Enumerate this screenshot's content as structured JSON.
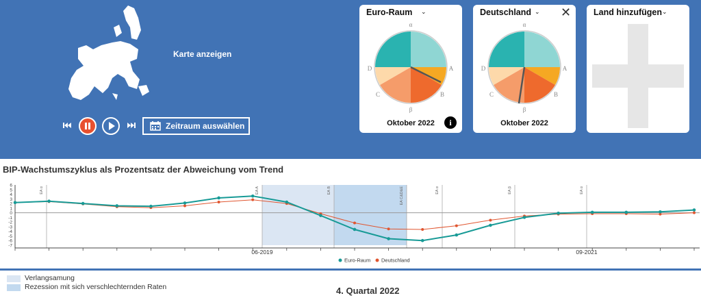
{
  "map": {
    "label": "Karte anzeigen"
  },
  "controls": {
    "range_label": "Zeitraum auswählen"
  },
  "cards": [
    {
      "title": "Euro-Raum",
      "date": "Oktober 2022"
    },
    {
      "title": "Deutschland",
      "date": "Oktober 2022"
    },
    {
      "title": "Land hinzufügen"
    }
  ],
  "pie_labels": {
    "alpha": "α",
    "beta": "β",
    "a": "A",
    "b": "B",
    "c": "C",
    "d": "D"
  },
  "colors": {
    "teal": "#2ab3b0",
    "teal_light": "#8fd6d3",
    "orange": "#f5a823",
    "orange_dark": "#ee6a2d",
    "salmon": "#f59c6a",
    "peach": "#fdd9aa",
    "brand_blue": "#4173b5",
    "euro_line": "#179a96",
    "de_line": "#e0552f",
    "slowdown": "#dbe6f3",
    "recession": "#c2d9ef"
  },
  "chart_title": "BIP-Wachstumszyklus als Prozentsatz der Abweichung vom Trend",
  "chart_data": {
    "type": "line",
    "x_ticks": [
      "06-2019",
      "09-2021"
    ],
    "phase_labels": [
      "EA α",
      "EA A",
      "EA B",
      "EA C&D&E",
      "EA α",
      "EA β",
      "EA α"
    ],
    "y_ticks": [
      "6",
      "5",
      "4",
      "3",
      "2",
      "1",
      "0",
      "-1",
      "-2",
      "-3",
      "-4",
      "-5",
      "-6",
      "-7"
    ],
    "ylim": [
      -7,
      6
    ],
    "series": [
      {
        "name": "Euro-Raum",
        "values": [
          2.2,
          2.5,
          2.0,
          1.5,
          1.4,
          2.1,
          3.2,
          3.6,
          2.3,
          -0.6,
          -3.6,
          -5.6,
          -6.0,
          -4.8,
          -2.7,
          -1.0,
          -0.1,
          0.1,
          0.1,
          0.2,
          0.6
        ]
      },
      {
        "name": "Deutschland",
        "values": [
          2.2,
          2.4,
          1.9,
          1.3,
          1.1,
          1.5,
          2.3,
          2.8,
          2.0,
          -0.2,
          -2.2,
          -3.5,
          -3.6,
          -2.8,
          -1.6,
          -0.7,
          -0.3,
          -0.2,
          -0.2,
          -0.3,
          0.0
        ]
      },
      {
        "name": "Verlangsamung",
        "values": []
      },
      {
        "name": "Rezession mit sich verschlechternden Raten",
        "values": []
      }
    ]
  },
  "legend": {
    "euro": "Euro-Raum",
    "de": "Deutschland",
    "slowdown": "Verlangsamung",
    "recession": "Rezession mit sich verschlechternden Raten"
  },
  "quarter": "4. Quartal 2022"
}
